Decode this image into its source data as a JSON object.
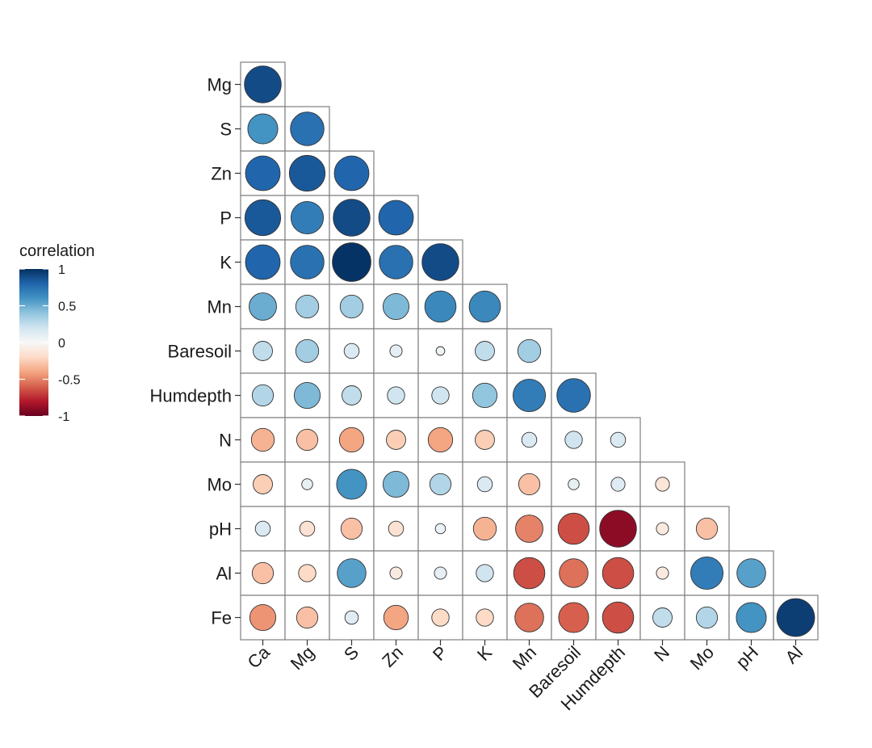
{
  "chart_data": {
    "type": "correlogram",
    "x_labels": [
      "Ca",
      "Mg",
      "S",
      "Zn",
      "P",
      "K",
      "Mn",
      "Baresoil",
      "Humdepth",
      "N",
      "Mo",
      "pH",
      "Al"
    ],
    "y_labels": [
      "Mg",
      "S",
      "Zn",
      "P",
      "K",
      "Mn",
      "Baresoil",
      "Humdepth",
      "N",
      "Mo",
      "pH",
      "Al",
      "Fe"
    ],
    "values": [
      [
        0.9
      ],
      [
        0.6,
        0.75
      ],
      [
        0.8,
        0.85,
        0.8
      ],
      [
        0.85,
        0.7,
        0.9,
        0.8
      ],
      [
        0.8,
        0.75,
        0.99,
        0.75,
        0.9
      ],
      [
        0.5,
        0.35,
        0.35,
        0.45,
        0.65,
        0.65
      ],
      [
        0.25,
        0.35,
        0.15,
        0.1,
        0.05,
        0.25,
        0.35
      ],
      [
        0.3,
        0.45,
        0.25,
        0.2,
        0.2,
        0.4,
        0.7,
        0.75
      ],
      [
        -0.35,
        -0.3,
        -0.4,
        -0.25,
        -0.4,
        -0.25,
        0.15,
        0.2,
        0.15
      ],
      [
        -0.25,
        0.08,
        0.6,
        0.45,
        0.3,
        0.15,
        -0.3,
        0.08,
        0.13,
        -0.13
      ],
      [
        0.15,
        -0.15,
        -0.3,
        -0.15,
        0.07,
        -0.35,
        -0.5,
        -0.65,
        -0.9,
        -0.1,
        -0.3
      ],
      [
        -0.3,
        -0.2,
        0.55,
        -0.1,
        0.1,
        0.2,
        -0.65,
        -0.55,
        -0.65,
        -0.1,
        0.7,
        0.55
      ],
      [
        -0.45,
        -0.3,
        0.12,
        -0.4,
        -0.2,
        -0.2,
        -0.55,
        -0.6,
        -0.65,
        0.25,
        0.3,
        0.6,
        0.95
      ]
    ],
    "legend": {
      "title": "correlation",
      "ticks": [
        "1",
        "0.5",
        "0",
        "-0.5",
        "-1"
      ],
      "range": [
        -1,
        1
      ],
      "colors": [
        "#67001F",
        "#B2182B",
        "#D6604D",
        "#F4A582",
        "#FDDBC7",
        "#F7F7F7",
        "#D1E5F0",
        "#92C5DE",
        "#4393C3",
        "#2166AC",
        "#053061"
      ]
    }
  }
}
